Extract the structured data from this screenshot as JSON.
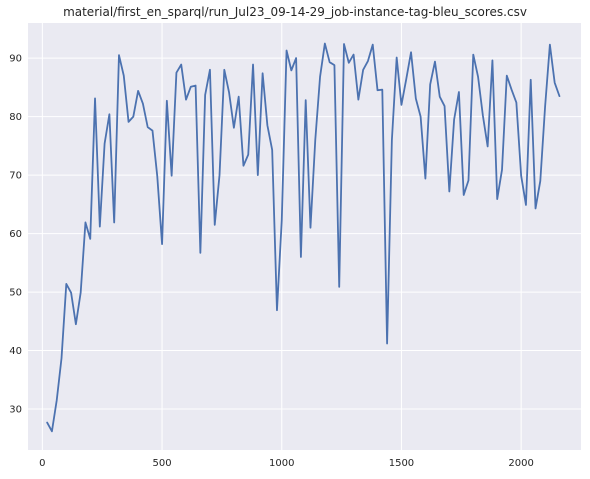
{
  "chart_data": {
    "type": "line",
    "title": "material/first_en_sparql/run_Jul23_09-14-29_job-instance-tag-bleu_scores.csv",
    "xlabel": "",
    "ylabel": "",
    "xlim": [
      -60,
      2250
    ],
    "ylim": [
      23,
      96
    ],
    "x_ticks": [
      0,
      500,
      1000,
      1500,
      2000
    ],
    "y_ticks": [
      30,
      40,
      50,
      60,
      70,
      80,
      90
    ],
    "x_tick_labels": [
      "0",
      "500",
      "1000",
      "1500",
      "2000"
    ],
    "y_tick_labels": [
      "30",
      "40",
      "50",
      "60",
      "70",
      "80",
      "90"
    ],
    "grid": true,
    "background": "#eaeaf2",
    "line_color": "#4c72b0",
    "series": [
      {
        "x": [
          20,
          40,
          60,
          80,
          100,
          120,
          140,
          160,
          180,
          200,
          220,
          240,
          260,
          280,
          300,
          320,
          340,
          360,
          380,
          400,
          420,
          440,
          460,
          480,
          500,
          520,
          540,
          560,
          580,
          600,
          620,
          640,
          660,
          680,
          700,
          720,
          740,
          760,
          780,
          800,
          820,
          840,
          860,
          880,
          900,
          920,
          940,
          960,
          980,
          1000,
          1020,
          1040,
          1060,
          1080,
          1100,
          1120,
          1140,
          1160,
          1180,
          1200,
          1220,
          1240,
          1260,
          1280,
          1300,
          1320,
          1340,
          1360,
          1380,
          1400,
          1420,
          1440,
          1460,
          1480,
          1500,
          1520,
          1540,
          1560,
          1580,
          1600,
          1620,
          1640,
          1660,
          1680,
          1700,
          1720,
          1740,
          1760,
          1780,
          1800,
          1820,
          1840,
          1860,
          1880,
          1900,
          1920,
          1940,
          1960,
          1980,
          2000,
          2020,
          2040,
          2060,
          2080,
          2100,
          2120,
          2140,
          2160
        ],
        "y": [
          27.7,
          26.2,
          31.5,
          38.7,
          51.4,
          49.9,
          44.5,
          49.9,
          61.9,
          59.1,
          83.1,
          61.2,
          75.4,
          80.4,
          61.9,
          90.5,
          87.0,
          79.1,
          80.0,
          84.4,
          82.2,
          78.2,
          77.6,
          69.8,
          58.2,
          82.7,
          69.9,
          87.5,
          88.9,
          82.9,
          85.1,
          85.3,
          56.7,
          83.7,
          88.0,
          61.5,
          70.0,
          88.0,
          84.1,
          78.1,
          83.4,
          71.6,
          73.5,
          88.9,
          70.0,
          87.4,
          78.5,
          74.3,
          46.9,
          62.3,
          91.3,
          87.9,
          90.0,
          56.0,
          82.8,
          61.0,
          76.0,
          86.8,
          92.5,
          89.3,
          88.8,
          50.9,
          92.4,
          89.2,
          90.6,
          82.9,
          88.0,
          89.5,
          92.3,
          84.5,
          84.6,
          41.2,
          76.0,
          90.1,
          82.0,
          86.4,
          91.0,
          83.1,
          80.0,
          69.4,
          85.5,
          89.4,
          83.4,
          81.8,
          67.2,
          79.5,
          84.2,
          66.6,
          69.1,
          90.6,
          86.8,
          80.2,
          74.9,
          89.6,
          65.9,
          70.9,
          87.0,
          84.6,
          82.4,
          69.9,
          64.9,
          86.3,
          64.3,
          69.0,
          81.7,
          92.3,
          85.8,
          83.5
        ]
      }
    ]
  }
}
